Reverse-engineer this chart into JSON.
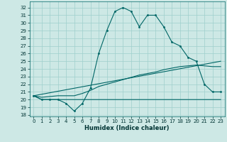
{
  "xlabel": "Humidex (Indice chaleur)",
  "ylabel": "",
  "xlim": [
    -0.5,
    23.5
  ],
  "ylim": [
    17.8,
    32.8
  ],
  "yticks": [
    18,
    19,
    20,
    21,
    22,
    23,
    24,
    25,
    26,
    27,
    28,
    29,
    30,
    31,
    32
  ],
  "xticks": [
    0,
    1,
    2,
    3,
    4,
    5,
    6,
    7,
    8,
    9,
    10,
    11,
    12,
    13,
    14,
    15,
    16,
    17,
    18,
    19,
    20,
    21,
    22,
    23
  ],
  "bg_color": "#cde8e5",
  "grid_color": "#9ecfcc",
  "line_color": "#006666",
  "line1_x": [
    0,
    1,
    2,
    3,
    4,
    5,
    6,
    7,
    8,
    9,
    10,
    11,
    12,
    13,
    14,
    15,
    16,
    17,
    18,
    19,
    20,
    21,
    22,
    23
  ],
  "line1_y": [
    20.5,
    20.0,
    20.0,
    20.0,
    19.5,
    18.5,
    19.5,
    21.5,
    26.0,
    29.0,
    31.5,
    32.0,
    31.5,
    29.5,
    31.0,
    31.0,
    29.5,
    27.5,
    27.0,
    25.5,
    25.0,
    22.0,
    21.0,
    21.0
  ],
  "line2_x": [
    0,
    1,
    2,
    3,
    4,
    5,
    6,
    7,
    8,
    9,
    10,
    11,
    12,
    13,
    14,
    15,
    16,
    17,
    18,
    19,
    20,
    21,
    22,
    23
  ],
  "line2_y": [
    20.5,
    20.0,
    20.0,
    20.0,
    20.0,
    20.0,
    20.0,
    20.0,
    20.0,
    20.0,
    20.0,
    20.0,
    20.0,
    20.0,
    20.0,
    20.0,
    20.0,
    20.0,
    20.0,
    20.0,
    20.0,
    20.0,
    20.0,
    20.0
  ],
  "line3_x": [
    0,
    1,
    2,
    3,
    4,
    5,
    6,
    7,
    8,
    9,
    10,
    11,
    12,
    13,
    14,
    15,
    16,
    17,
    18,
    19,
    20,
    21,
    22,
    23
  ],
  "line3_y": [
    20.5,
    20.3,
    20.4,
    20.5,
    20.5,
    20.5,
    20.8,
    21.2,
    21.7,
    22.0,
    22.3,
    22.6,
    22.9,
    23.2,
    23.4,
    23.6,
    23.9,
    24.1,
    24.3,
    24.4,
    24.5,
    24.4,
    24.3,
    24.3
  ],
  "line4_x": [
    0,
    23
  ],
  "line4_y": [
    20.5,
    25.0
  ]
}
